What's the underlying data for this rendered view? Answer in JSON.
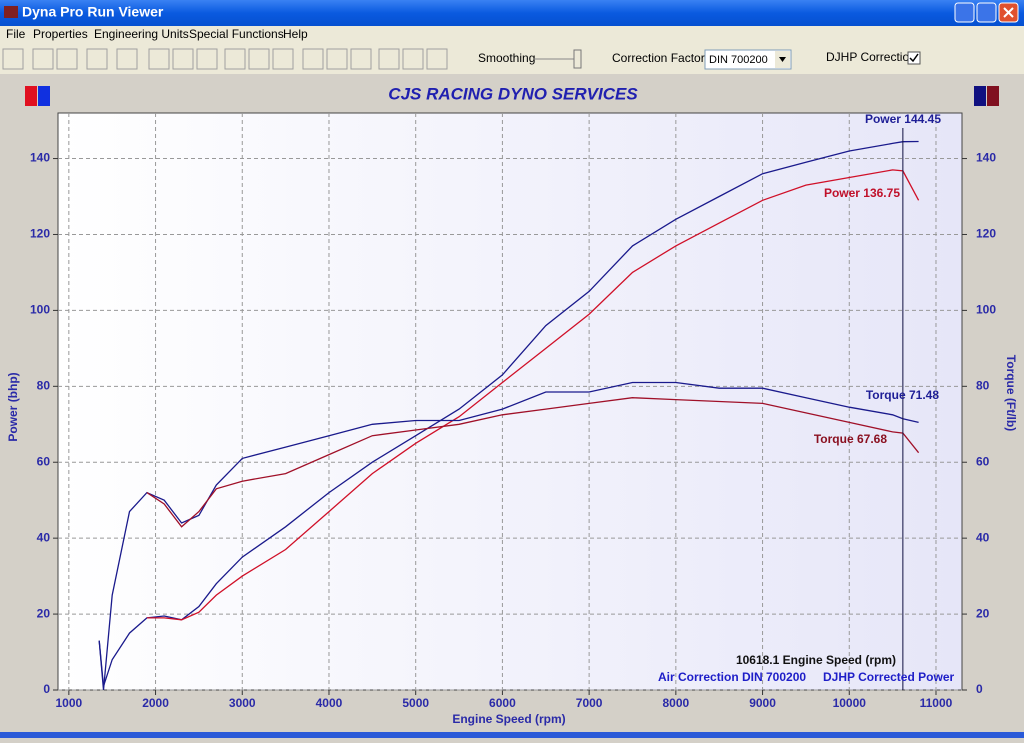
{
  "window": {
    "title": "Dyna Pro Run Viewer"
  },
  "menu": [
    "File",
    "Properties",
    "Engineering Units",
    "Special Functions",
    "Help"
  ],
  "toolbar": {
    "smoothing": "Smoothing",
    "correction_factor": "Correction Factor",
    "correction_value": "DIN 700200",
    "djhp_correction": "DJHP Correction"
  },
  "chart_data": {
    "type": "line",
    "title": "CJS RACING DYNO SERVICES",
    "x_label": "Engine Speed (rpm)",
    "y_label": "Power (bhp)",
    "y2_label": "Torque (Ft/lb)",
    "x": [
      1350,
      1400,
      1500,
      1700,
      1900,
      2100,
      2300,
      2500,
      2700,
      3000,
      3500,
      4000,
      4500,
      5000,
      5500,
      6000,
      6500,
      7000,
      7500,
      8000,
      8500,
      9000,
      9500,
      10000,
      10500,
      10618,
      10800
    ],
    "series": [
      {
        "name": "Power",
        "color": "#1a1a8c",
        "values": [
          13,
          1,
          8,
          15,
          19,
          19.5,
          18.5,
          22,
          28,
          35,
          43,
          52,
          60,
          67,
          74,
          83,
          96,
          105,
          117,
          124,
          130,
          136,
          139,
          142,
          144,
          144.45,
          144.5
        ]
      },
      {
        "name": "Power",
        "color": "#d01028",
        "values": [
          null,
          null,
          null,
          null,
          19,
          19,
          18.5,
          20.5,
          25,
          30,
          37,
          47,
          57,
          65,
          72,
          81,
          90,
          99,
          110,
          117,
          123,
          129,
          133,
          135,
          137,
          136.75,
          129
        ]
      },
      {
        "name": "Torque",
        "color": "#1a1a8c",
        "axis": "y2",
        "values": [
          13,
          0,
          25,
          47,
          52,
          50,
          44,
          46,
          54,
          61,
          64,
          67,
          70,
          71,
          71,
          74,
          78.5,
          78.5,
          81,
          81,
          79.5,
          79.5,
          77,
          74.5,
          72.5,
          71.48,
          70.5
        ]
      },
      {
        "name": "Torque",
        "color": "#a01028",
        "axis": "y2",
        "values": [
          null,
          null,
          null,
          null,
          52,
          49,
          43,
          47,
          53,
          55,
          57,
          62,
          67,
          68.5,
          70,
          72.5,
          74,
          75.5,
          77,
          76.5,
          76,
          75.5,
          73,
          70.5,
          68,
          67.68,
          62.5
        ]
      }
    ],
    "xlim": [
      875,
      11300
    ],
    "ylim": [
      0,
      152
    ],
    "y2lim": [
      0,
      152
    ],
    "xticks": [
      1000,
      2000,
      3000,
      4000,
      5000,
      6000,
      7000,
      8000,
      9000,
      10000,
      11000
    ],
    "yticks": [
      0,
      20,
      40,
      60,
      80,
      100,
      120,
      140
    ],
    "y2ticks": [
      0,
      20,
      40,
      60,
      80,
      100,
      120,
      140
    ],
    "grid": true,
    "cursor": 10618.1,
    "annotations": [
      "Power 144.45",
      "Power 136.75",
      "Torque 71.48",
      "Torque 67.68",
      "10618.1 Engine Speed (rpm)",
      "Air Correction DIN 700200",
      "DJHP Corrected Power"
    ]
  }
}
